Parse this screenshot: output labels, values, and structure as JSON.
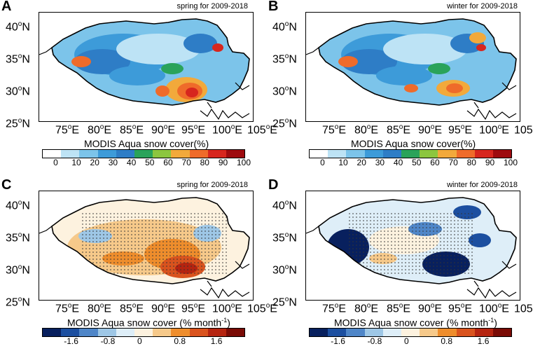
{
  "panels": [
    {
      "letter": "A",
      "subtitle": "spring for 2009-2018",
      "scheme": "cover",
      "colorbar_title": "MODIS Aqua snow cover(%)",
      "ticks": [
        "0",
        "10",
        "20",
        "30",
        "40",
        "50",
        "60",
        "70",
        "80",
        "90",
        "100"
      ]
    },
    {
      "letter": "B",
      "subtitle": "winter for 2009-2018",
      "scheme": "cover",
      "colorbar_title": "MODIS Aqua snow cover(%)",
      "ticks": [
        "0",
        "10",
        "20",
        "30",
        "40",
        "50",
        "60",
        "70",
        "80",
        "90",
        "100"
      ]
    },
    {
      "letter": "C",
      "subtitle": "spring for 2009-2018",
      "scheme": "trend",
      "colorbar_title": "MODIS Aqua snow cover (% month",
      "colorbar_sup": "-1",
      "colorbar_close": ")",
      "ticks": [
        "-1.6",
        "-0.8",
        "0",
        "0.8",
        "1.6"
      ]
    },
    {
      "letter": "D",
      "subtitle": "winter for 2009-2018",
      "scheme": "trend",
      "colorbar_title": "MODIS Aqua snow cover (% month",
      "colorbar_sup": "-1",
      "colorbar_close": ")",
      "ticks": [
        "-1.6",
        "-0.8",
        "0",
        "0.8",
        "1.6"
      ]
    }
  ],
  "lat_labels": [
    {
      "num": "40",
      "unit": "N"
    },
    {
      "num": "35",
      "unit": "N"
    },
    {
      "num": "30",
      "unit": "N"
    },
    {
      "num": "25",
      "unit": "N"
    }
  ],
  "lon_labels": [
    {
      "num": "75",
      "unit": "E"
    },
    {
      "num": "80",
      "unit": "E"
    },
    {
      "num": "85",
      "unit": "E"
    },
    {
      "num": "90",
      "unit": "E"
    },
    {
      "num": "95",
      "unit": "E"
    },
    {
      "num": "100",
      "unit": "E"
    },
    {
      "num": "105",
      "unit": "E"
    }
  ],
  "degree_symbol": "o",
  "colors": {
    "cover": [
      "#ffffff",
      "#bde3f5",
      "#7cc4ea",
      "#3d9bd9",
      "#2e7dc6",
      "#2aa35a",
      "#8cc63f",
      "#f2a93b",
      "#ef6b2a",
      "#d7261e",
      "#9e0b0f"
    ],
    "trend": [
      "#08205e",
      "#1c4fa0",
      "#4f86c8",
      "#9ec7e6",
      "#deeef8",
      "#fdf2df",
      "#f6c98a",
      "#ee8d2c",
      "#d9531e",
      "#b52410",
      "#7a0b06"
    ]
  }
}
